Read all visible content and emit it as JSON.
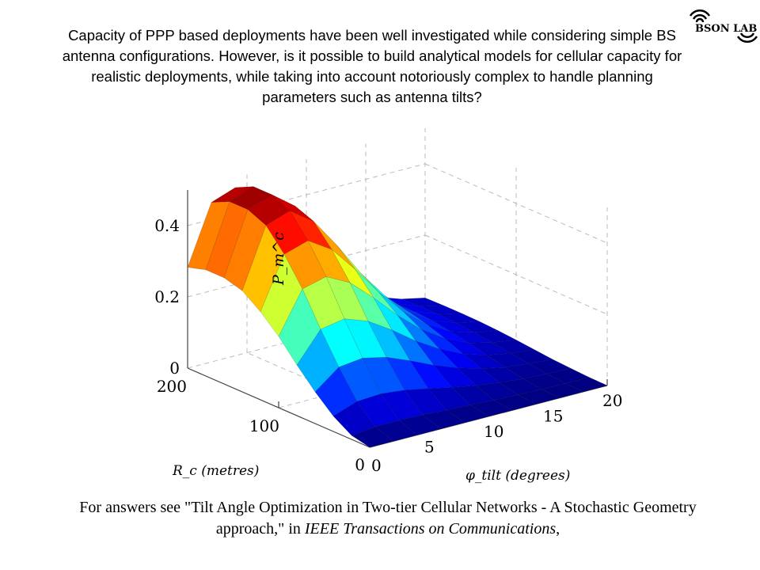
{
  "slide": {
    "intro_text": "Capacity of PPP based deployments have been well investigated while considering simple BS antenna configurations. However, is it possible to build analytical models for cellular capacity for realistic deployments, while taking into account notoriously complex to handle planning parameters such as antenna tilts?",
    "citation_plain": "For answers see \"Tilt Angle Optimization in Two-tier Cellular Networks - A Stochastic Geometry approach,\" in ",
    "citation_italic": "IEEE Transactions on Communications",
    "citation_end": ",",
    "logo_text": "BSON LAB"
  },
  "chart_data": {
    "type": "surface",
    "title": "",
    "xlabel": "R_c (metres)",
    "ylabel": "φ_tilt (degrees)",
    "zlabel": "P_m^c",
    "xlim": [
      0,
      200
    ],
    "ylim": [
      0,
      20
    ],
    "zlim": [
      0,
      0.5
    ],
    "x_ticks": [
      "0",
      "100",
      "200"
    ],
    "y_ticks": [
      "0",
      "5",
      "10",
      "15",
      "20"
    ],
    "z_ticks": [
      "0",
      "0.2",
      "0.4"
    ],
    "grid": true,
    "colormap": "jet",
    "x": [
      0,
      20,
      40,
      60,
      80,
      100,
      120,
      140,
      160,
      180,
      200
    ],
    "y": [
      0,
      2,
      4,
      6,
      8,
      10,
      12,
      14,
      16,
      18,
      20
    ],
    "z": [
      [
        0,
        0,
        0,
        0,
        0,
        0,
        0,
        0,
        0,
        0,
        0
      ],
      [
        0.011,
        0.018,
        0.019,
        0.017,
        0.013,
        0.01,
        0.006,
        0.004,
        0.002,
        0.001,
        0.001
      ],
      [
        0.043,
        0.067,
        0.071,
        0.064,
        0.051,
        0.037,
        0.025,
        0.016,
        0.009,
        0.006,
        0.004
      ],
      [
        0.089,
        0.141,
        0.149,
        0.134,
        0.107,
        0.077,
        0.052,
        0.033,
        0.019,
        0.012,
        0.007
      ],
      [
        0.142,
        0.225,
        0.237,
        0.213,
        0.171,
        0.123,
        0.083,
        0.052,
        0.031,
        0.019,
        0.012
      ],
      [
        0.2,
        0.316,
        0.333,
        0.299,
        0.239,
        0.173,
        0.116,
        0.073,
        0.043,
        0.027,
        0.017
      ],
      [
        0.247,
        0.391,
        0.412,
        0.37,
        0.296,
        0.214,
        0.144,
        0.091,
        0.053,
        0.033,
        0.021
      ],
      [
        0.284,
        0.45,
        0.474,
        0.427,
        0.341,
        0.246,
        0.166,
        0.104,
        0.062,
        0.038,
        0.024
      ],
      [
        0.298,
        0.472,
        0.497,
        0.447,
        0.358,
        0.258,
        0.174,
        0.109,
        0.065,
        0.04,
        0.025
      ],
      [
        0.298,
        0.472,
        0.497,
        0.447,
        0.357,
        0.258,
        0.174,
        0.109,
        0.065,
        0.04,
        0.025
      ],
      [
        0.283,
        0.448,
        0.472,
        0.424,
        0.339,
        0.245,
        0.165,
        0.104,
        0.061,
        0.038,
        0.024
      ]
    ]
  }
}
